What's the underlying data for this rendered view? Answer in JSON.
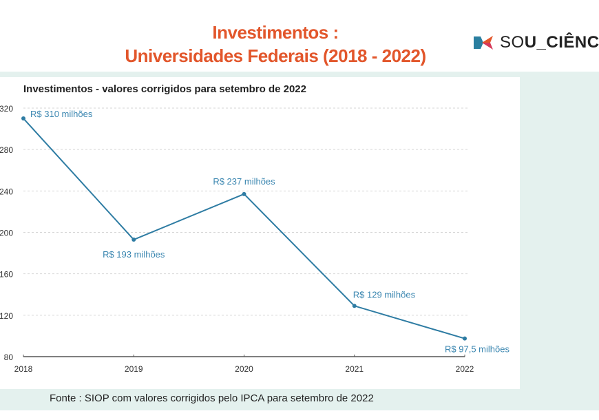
{
  "header": {
    "title_line1": "Investimentos :",
    "title_line2": "Universidades Federais (2018 - 2022)",
    "logo_text": "SOU_CIÊNC",
    "title_color": "#e2562b"
  },
  "chart_data": {
    "type": "line",
    "title": "Investimentos - valores corrigidos para setembro de 2022",
    "categories": [
      "2018",
      "2019",
      "2020",
      "2021",
      "2022"
    ],
    "values": [
      310,
      193,
      237,
      129,
      97.5
    ],
    "data_labels": [
      "R$ 310 milhões",
      "R$ 193 milhões",
      "R$ 237 milhões",
      "R$ 129 milhões",
      "R$ 97,5 milhões"
    ],
    "y_ticks": [
      80,
      120,
      160,
      200,
      240,
      280,
      320
    ],
    "ylim": [
      80,
      320
    ],
    "grid": true,
    "line_color": "#2e7ca3",
    "label_color": "#3a86b0"
  },
  "footer": {
    "source": "Fonte : SIOP com valores corrigidos pelo IPCA para setembro de 2022"
  }
}
